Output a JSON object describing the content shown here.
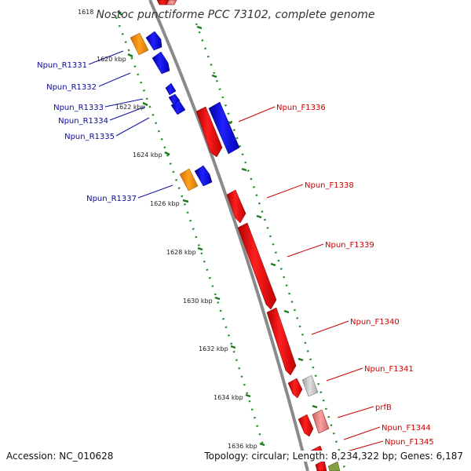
{
  "title": "Nostoc punctiforme PCC 73102, complete genome",
  "footer": {
    "accession": "Accession: NC_010628",
    "topology": "Topology: circular; Length: 8,234,322 bp; Genes: 6,187"
  },
  "colors": {
    "forward_gene": "#ff0000",
    "forward_gene_light": "#f08080",
    "reverse_gene": "#0000ff",
    "rna_gene": "#ff9900",
    "pseudo_gene": "#c8c8c8",
    "other_gene": "#80a040",
    "backbone": "#888888",
    "tick_mark": "#228b22",
    "label_reverse": "#0a0a9a",
    "label_forward": "#cc0000"
  },
  "ticks": [
    {
      "label": "1618"
    },
    {
      "label": "1620 kbp"
    },
    {
      "label": "1622 kbp"
    },
    {
      "label": "1624 kbp"
    },
    {
      "label": "1626 kbp"
    },
    {
      "label": "1628 kbp"
    },
    {
      "label": "1630 kbp"
    },
    {
      "label": "1632 kbp"
    },
    {
      "label": "1634 kbp"
    },
    {
      "label": "1636 kbp"
    }
  ],
  "reverse_labels": [
    {
      "label": "Npun_R1331"
    },
    {
      "label": "Npun_R1332"
    },
    {
      "label": "Npun_R1333"
    },
    {
      "label": "Npun_R1334"
    },
    {
      "label": "Npun_R1335"
    },
    {
      "label": "Npun_R1337"
    }
  ],
  "forward_labels": [
    {
      "label": "Npun_F1336"
    },
    {
      "label": "Npun_F1338"
    },
    {
      "label": "Npun_F1339"
    },
    {
      "label": "Npun_F1340"
    },
    {
      "label": "Npun_F1341"
    },
    {
      "label": "prfB"
    },
    {
      "label": "Npun_F1344"
    },
    {
      "label": "Npun_F1345"
    }
  ]
}
